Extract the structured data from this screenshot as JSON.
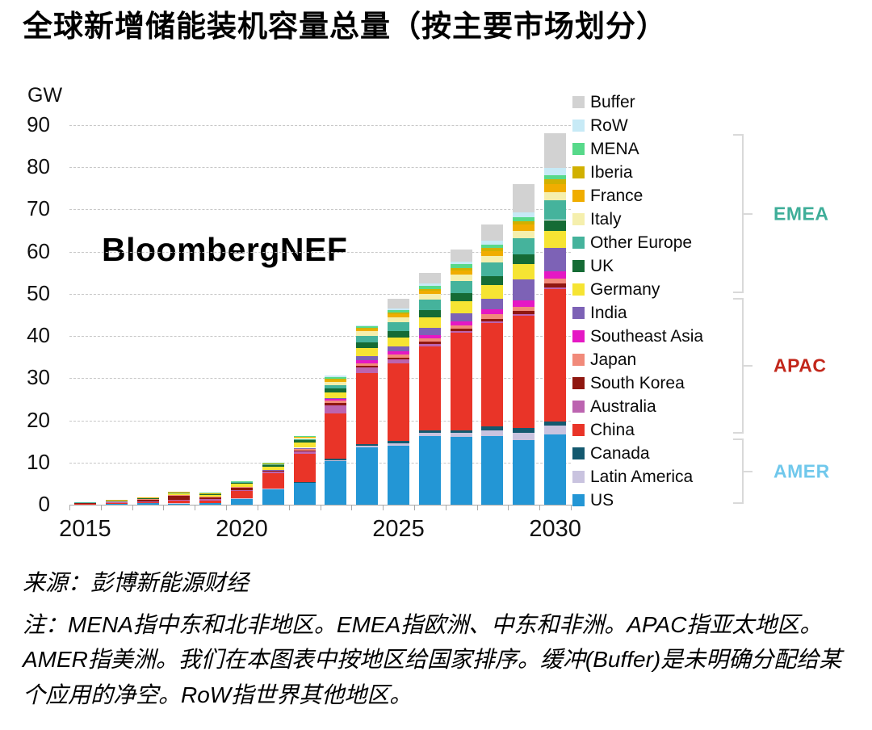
{
  "title": "全球新增储能装机容量总量（按主要市场划分）",
  "watermark": "BloombergNEF",
  "y_axis": {
    "unit": "GW",
    "ticks": [
      0,
      10,
      20,
      30,
      40,
      50,
      60,
      70,
      80,
      90
    ]
  },
  "x_axis": {
    "labels": [
      "2015",
      "2020",
      "2025",
      "2030"
    ]
  },
  "footer": {
    "source": "来源：彭博新能源财经",
    "note": "注：MENA指中东和北非地区。EMEA指欧洲、中东和非洲。APAC指亚太地区。AMER指美洲。我们在本图表中按地区给国家排序。缓冲(Buffer)是未明确分配给某个应用的净空。RoW指世界其他地区。"
  },
  "groups": [
    {
      "label": "EMEA",
      "color": "#3fae99",
      "members": [
        "MENA",
        "Iberia",
        "France",
        "Italy",
        "Other Europe",
        "UK",
        "Germany"
      ]
    },
    {
      "label": "APAC",
      "color": "#c2271b",
      "members": [
        "India",
        "Southeast Asia",
        "Japan",
        "South Korea",
        "Australia",
        "China"
      ]
    },
    {
      "label": "AMER",
      "color": "#70c8ec",
      "members": [
        "Canada",
        "Latin America",
        "US"
      ]
    }
  ],
  "chart_data": {
    "type": "bar",
    "stacked": true,
    "title": "全球新增储能装机容量总量（按主要市场划分）",
    "ylabel": "GW",
    "ylim": [
      0,
      90
    ],
    "grid": "horizontal-dashed",
    "legend_position": "right",
    "categories": [
      "2015",
      "2016",
      "2017",
      "2018",
      "2019",
      "2020",
      "2021",
      "2022",
      "2023",
      "2024",
      "2025",
      "2026",
      "2027",
      "2028",
      "2029",
      "2030"
    ],
    "totals": [
      0.6,
      1.1,
      1.7,
      3.0,
      2.8,
      5.5,
      10.0,
      16.3,
      30.6,
      42.5,
      48.8,
      55.0,
      60.5,
      66.5,
      76.0,
      88.0
    ],
    "series": [
      {
        "name": "US",
        "region": "AMER",
        "color": "#2396d5",
        "values": [
          0.15,
          0.25,
          0.3,
          0.3,
          0.4,
          1.5,
          3.8,
          5.2,
          10.4,
          13.6,
          14.0,
          16.2,
          16.0,
          16.3,
          15.3,
          16.6
        ]
      },
      {
        "name": "Latin America",
        "region": "AMER",
        "color": "#c9c3df",
        "values": [
          0,
          0,
          0,
          0.05,
          0,
          0.05,
          0.1,
          0.1,
          0.2,
          0.4,
          0.6,
          0.8,
          1.0,
          1.3,
          1.7,
          2.1
        ]
      },
      {
        "name": "Canada",
        "region": "AMER",
        "color": "#14596f",
        "values": [
          0,
          0,
          0,
          0,
          0,
          0,
          0,
          0.1,
          0.3,
          0.4,
          0.5,
          0.6,
          0.7,
          0.9,
          1.1,
          1.1
        ]
      },
      {
        "name": "China",
        "region": "APAC",
        "color": "#e93428",
        "values": [
          0.1,
          0.2,
          0.35,
          0.55,
          0.65,
          1.7,
          3.6,
          6.7,
          10.8,
          16.8,
          18.5,
          20.0,
          23.0,
          24.6,
          26.7,
          31.4
        ]
      },
      {
        "name": "Australia",
        "region": "APAC",
        "color": "#bc64b0",
        "values": [
          0,
          0.05,
          0.1,
          0.2,
          0.25,
          0.25,
          0.3,
          0.6,
          1.9,
          1.3,
          0.8,
          0.6,
          0.5,
          0.4,
          0.4,
          0.4
        ]
      },
      {
        "name": "South Korea",
        "region": "APAC",
        "color": "#8f1710",
        "values": [
          0.15,
          0.2,
          0.45,
          1.1,
          0.5,
          0.6,
          0.15,
          0.2,
          0.5,
          0.5,
          0.5,
          0.5,
          0.5,
          0.6,
          0.7,
          0.8
        ]
      },
      {
        "name": "Japan",
        "region": "APAC",
        "color": "#f18a7a",
        "values": [
          0.1,
          0.1,
          0.1,
          0.15,
          0.2,
          0.2,
          0.2,
          0.3,
          0.6,
          0.6,
          0.7,
          0.8,
          0.8,
          1.0,
          1.1,
          1.3
        ]
      },
      {
        "name": "Southeast Asia",
        "region": "APAC",
        "color": "#e518c4",
        "values": [
          0,
          0,
          0,
          0,
          0,
          0,
          0.05,
          0.2,
          0.3,
          0.6,
          0.7,
          0.8,
          1.0,
          1.2,
          1.5,
          1.7
        ]
      },
      {
        "name": "India",
        "region": "APAC",
        "color": "#7d62b6",
        "values": [
          0,
          0,
          0,
          0,
          0,
          0,
          0.05,
          0.1,
          0.3,
          1.1,
          1.3,
          1.6,
          1.9,
          2.6,
          5.0,
          5.4
        ]
      },
      {
        "name": "Germany",
        "region": "EMEA",
        "color": "#f6e433",
        "values": [
          0.05,
          0.15,
          0.15,
          0.25,
          0.35,
          0.6,
          0.8,
          1.2,
          1.3,
          1.9,
          2.0,
          2.5,
          2.9,
          3.2,
          3.6,
          4.2
        ]
      },
      {
        "name": "UK",
        "region": "EMEA",
        "color": "#156b35",
        "values": [
          0,
          0,
          0.15,
          0.25,
          0.2,
          0.3,
          0.4,
          0.6,
          1.0,
          1.3,
          1.5,
          1.7,
          1.9,
          2.0,
          2.2,
          2.5
        ]
      },
      {
        "name": "Other Europe",
        "region": "EMEA",
        "color": "#45b39c",
        "values": [
          0.05,
          0.05,
          0.05,
          0.1,
          0.1,
          0.15,
          0.2,
          0.3,
          0.8,
          1.6,
          2.2,
          2.5,
          2.9,
          3.3,
          3.8,
          4.6
        ]
      },
      {
        "name": "Italy",
        "region": "EMEA",
        "color": "#f5efad",
        "values": [
          0,
          0,
          0,
          0,
          0,
          0,
          0.05,
          0.3,
          0.7,
          1.0,
          1.1,
          1.3,
          1.5,
          1.6,
          1.8,
          2.1
        ]
      },
      {
        "name": "France",
        "region": "EMEA",
        "color": "#f0ad00",
        "values": [
          0,
          0.1,
          0.05,
          0.05,
          0.05,
          0,
          0.15,
          0.2,
          0.4,
          0.5,
          0.7,
          0.8,
          1.0,
          1.2,
          1.5,
          1.9
        ]
      },
      {
        "name": "Iberia",
        "region": "EMEA",
        "color": "#d1b000",
        "values": [
          0,
          0,
          0,
          0,
          0,
          0,
          0.05,
          0.1,
          0.3,
          0.3,
          0.4,
          0.5,
          0.6,
          0.7,
          0.8,
          1.0
        ]
      },
      {
        "name": "MENA",
        "region": "EMEA",
        "color": "#57d98a",
        "values": [
          0,
          0,
          0,
          0,
          0.1,
          0.15,
          0.1,
          0.1,
          0.5,
          0.4,
          0.6,
          0.7,
          0.8,
          0.8,
          0.9,
          1.0
        ]
      },
      {
        "name": "RoW",
        "region": "RoW",
        "color": "#c7eaf6",
        "values": [
          0,
          0,
          0,
          0,
          0,
          0,
          0,
          0,
          0.3,
          0.2,
          0.4,
          0.5,
          0.7,
          0.9,
          1.3,
          1.7
        ]
      },
      {
        "name": "Buffer",
        "region": "Buffer",
        "color": "#d2d2d2",
        "values": [
          0,
          0,
          0,
          0,
          0,
          0,
          0,
          0,
          0,
          0,
          2.3,
          2.6,
          2.8,
          3.9,
          6.6,
          8.2
        ]
      }
    ]
  }
}
